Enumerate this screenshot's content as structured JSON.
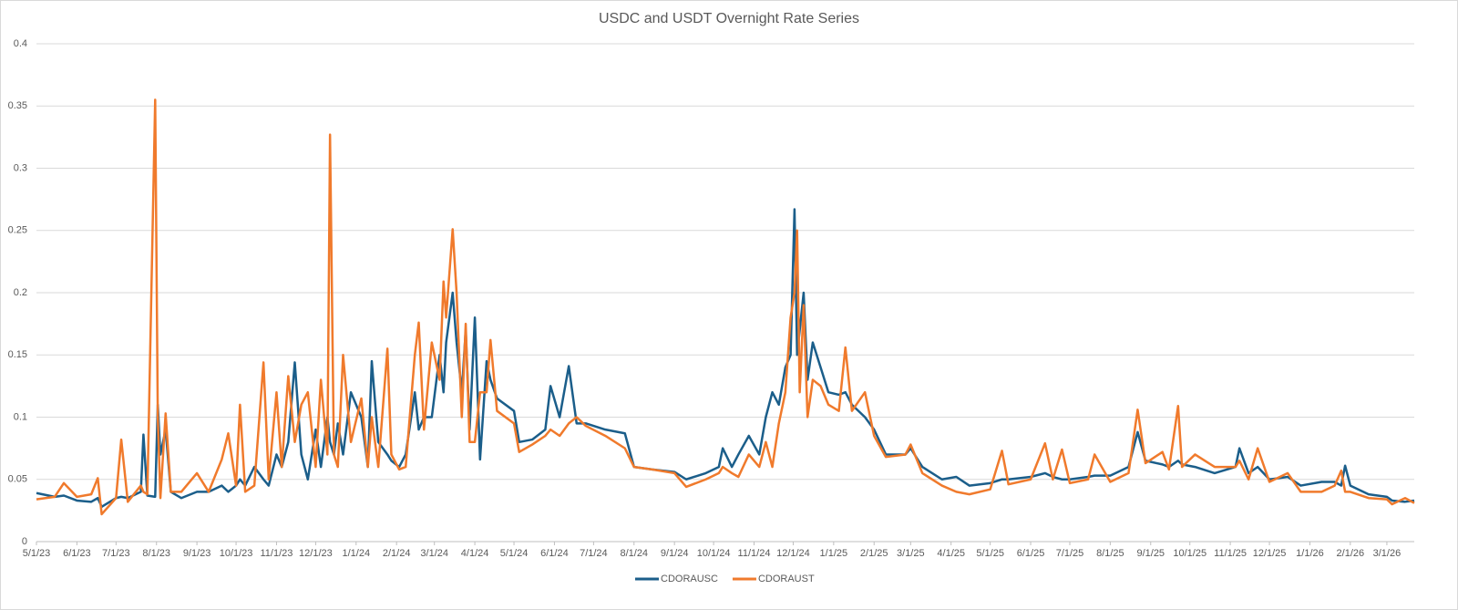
{
  "chart_data": {
    "type": "line",
    "title": "USDC and USDT Overnight Rate Series",
    "x": [
      "5/1/23",
      "5/15/23",
      "5/22/23",
      "6/1/23",
      "6/12/23",
      "6/17/23",
      "6/20/23",
      "7/1/23",
      "7/5/23",
      "7/10/23",
      "7/20/23",
      "7/22/23",
      "7/25/23",
      "7/31/23",
      "8/2/23",
      "8/4/23",
      "8/8/23",
      "8/12/23",
      "8/20/23",
      "9/1/23",
      "9/10/23",
      "9/20/23",
      "9/25/23",
      "10/1/23",
      "10/4/23",
      "10/8/23",
      "10/15/23",
      "10/22/23",
      "10/26/23",
      "11/1/23",
      "11/5/23",
      "11/10/23",
      "11/15/23",
      "11/20/23",
      "11/25/23",
      "12/1/23",
      "12/5/23",
      "12/10/23",
      "12/12/23",
      "12/15/23",
      "12/18/23",
      "12/22/23",
      "12/28/23",
      "1/5/24",
      "1/10/24",
      "1/13/24",
      "1/18/24",
      "1/25/24",
      "1/28/24",
      "2/3/24",
      "2/8/24",
      "2/15/24",
      "2/18/24",
      "2/22/24",
      "2/28/24",
      "3/5/24",
      "3/8/24",
      "3/10/24",
      "3/15/24",
      "3/18/24",
      "3/22/24",
      "3/25/24",
      "3/28/24",
      "4/1/24",
      "4/5/24",
      "4/10/24",
      "4/13/24",
      "4/18/24",
      "5/1/24",
      "5/5/24",
      "5/15/24",
      "5/25/24",
      "5/29/24",
      "6/5/24",
      "6/12/24",
      "6/18/24",
      "6/25/24",
      "7/10/24",
      "7/25/24",
      "8/1/24",
      "8/15/24",
      "9/1/24",
      "9/10/24",
      "9/25/24",
      "10/5/24",
      "10/8/24",
      "10/15/24",
      "10/20/24",
      "10/28/24",
      "11/5/24",
      "11/10/24",
      "11/15/24",
      "11/20/24",
      "11/25/24",
      "11/29/24",
      "12/2/24",
      "12/4/24",
      "12/6/24",
      "12/9/24",
      "12/12/24",
      "12/16/24",
      "12/22/24",
      "12/28/24",
      "1/5/25",
      "1/10/25",
      "1/15/25",
      "1/25/25",
      "2/1/25",
      "2/10/25",
      "2/25/25",
      "3/1/25",
      "3/10/25",
      "3/25/25",
      "4/5/25",
      "4/15/25",
      "5/1/25",
      "5/10/25",
      "5/15/25",
      "6/1/25",
      "6/12/25",
      "6/18/25",
      "6/25/25",
      "7/1/25",
      "7/15/25",
      "7/20/25",
      "8/1/25",
      "8/15/25",
      "8/22/25",
      "8/28/25",
      "9/10/25",
      "9/15/25",
      "9/22/25",
      "9/25/25",
      "10/5/25",
      "10/20/25",
      "11/5/25",
      "11/8/25",
      "11/15/25",
      "11/22/25",
      "12/1/25",
      "12/15/25",
      "12/25/25",
      "1/10/26",
      "1/20/26",
      "1/25/26",
      "1/28/26",
      "2/1/26",
      "2/15/26",
      "3/1/26",
      "3/5/26",
      "3/15/26",
      "3/22/26"
    ],
    "series": [
      {
        "name": "CDORAUSC",
        "color": "#1b5e8a",
        "values": [
          0.039,
          0.036,
          0.037,
          0.033,
          0.032,
          0.035,
          0.028,
          0.035,
          0.036,
          0.035,
          0.04,
          0.086,
          0.037,
          0.036,
          0.11,
          0.07,
          0.09,
          0.04,
          0.035,
          0.04,
          0.04,
          0.045,
          0.04,
          0.045,
          0.05,
          0.045,
          0.06,
          0.05,
          0.045,
          0.07,
          0.06,
          0.08,
          0.144,
          0.07,
          0.05,
          0.09,
          0.06,
          0.1,
          0.08,
          0.07,
          0.095,
          0.07,
          0.12,
          0.1,
          0.06,
          0.145,
          0.08,
          0.07,
          0.065,
          0.06,
          0.07,
          0.12,
          0.09,
          0.1,
          0.1,
          0.15,
          0.12,
          0.16,
          0.2,
          0.16,
          0.12,
          0.17,
          0.09,
          0.18,
          0.066,
          0.145,
          0.13,
          0.115,
          0.105,
          0.08,
          0.082,
          0.09,
          0.125,
          0.1,
          0.141,
          0.095,
          0.095,
          0.09,
          0.087,
          0.06,
          0.058,
          0.056,
          0.05,
          0.055,
          0.06,
          0.075,
          0.06,
          0.07,
          0.085,
          0.07,
          0.1,
          0.12,
          0.11,
          0.14,
          0.15,
          0.267,
          0.15,
          0.17,
          0.2,
          0.13,
          0.16,
          0.14,
          0.12,
          0.118,
          0.12,
          0.11,
          0.1,
          0.09,
          0.07,
          0.07,
          0.075,
          0.06,
          0.05,
          0.052,
          0.045,
          0.047,
          0.05,
          0.05,
          0.052,
          0.055,
          0.052,
          0.05,
          0.05,
          0.052,
          0.053,
          0.053,
          0.06,
          0.088,
          0.065,
          0.062,
          0.06,
          0.065,
          0.062,
          0.06,
          0.055,
          0.06,
          0.075,
          0.055,
          0.06,
          0.05,
          0.052,
          0.045,
          0.048,
          0.048,
          0.045,
          0.061,
          0.045,
          0.038,
          0.036,
          0.033,
          0.032,
          0.033
        ]
      },
      {
        "name": "CDORAUST",
        "color": "#f07a2c",
        "values": [
          0.034,
          0.036,
          0.047,
          0.036,
          0.038,
          0.051,
          0.022,
          0.035,
          0.082,
          0.032,
          0.045,
          0.04,
          0.038,
          0.355,
          0.1,
          0.035,
          0.103,
          0.04,
          0.04,
          0.055,
          0.04,
          0.066,
          0.087,
          0.045,
          0.11,
          0.04,
          0.045,
          0.144,
          0.05,
          0.12,
          0.06,
          0.133,
          0.08,
          0.11,
          0.12,
          0.06,
          0.13,
          0.07,
          0.327,
          0.07,
          0.06,
          0.15,
          0.08,
          0.115,
          0.06,
          0.1,
          0.06,
          0.155,
          0.07,
          0.058,
          0.06,
          0.15,
          0.176,
          0.09,
          0.16,
          0.13,
          0.209,
          0.18,
          0.251,
          0.2,
          0.1,
          0.175,
          0.08,
          0.08,
          0.12,
          0.12,
          0.162,
          0.105,
          0.095,
          0.072,
          0.078,
          0.085,
          0.09,
          0.085,
          0.095,
          0.1,
          0.093,
          0.085,
          0.075,
          0.06,
          0.058,
          0.055,
          0.044,
          0.05,
          0.055,
          0.06,
          0.055,
          0.052,
          0.07,
          0.06,
          0.08,
          0.06,
          0.095,
          0.12,
          0.18,
          0.2,
          0.25,
          0.12,
          0.19,
          0.1,
          0.13,
          0.125,
          0.11,
          0.105,
          0.156,
          0.105,
          0.12,
          0.085,
          0.068,
          0.07,
          0.078,
          0.055,
          0.045,
          0.04,
          0.038,
          0.042,
          0.073,
          0.046,
          0.05,
          0.079,
          0.05,
          0.074,
          0.047,
          0.05,
          0.07,
          0.048,
          0.055,
          0.106,
          0.063,
          0.072,
          0.058,
          0.109,
          0.06,
          0.07,
          0.06,
          0.06,
          0.065,
          0.05,
          0.075,
          0.048,
          0.055,
          0.04,
          0.04,
          0.045,
          0.057,
          0.04,
          0.04,
          0.035,
          0.034,
          0.03,
          0.035,
          0.031
        ]
      }
    ],
    "xlim": [
      "5/1/23",
      "3/22/26"
    ],
    "xticks": [
      "5/1/23",
      "6/1/23",
      "7/1/23",
      "8/1/23",
      "9/1/23",
      "10/1/23",
      "11/1/23",
      "12/1/23",
      "1/1/24",
      "2/1/24",
      "3/1/24",
      "4/1/24",
      "5/1/24",
      "6/1/24",
      "7/1/24",
      "8/1/24",
      "9/1/24",
      "10/1/24",
      "11/1/24",
      "12/1/24",
      "1/1/25",
      "2/1/25",
      "3/1/25",
      "4/1/25",
      "5/1/25",
      "6/1/25",
      "7/1/25",
      "8/1/25",
      "9/1/25",
      "10/1/25",
      "11/1/25",
      "12/1/25",
      "1/1/26",
      "2/1/26",
      "3/1/26"
    ],
    "ylim": [
      0,
      0.4
    ],
    "yticks": [
      0,
      0.05,
      0.1,
      0.15,
      0.2,
      0.25,
      0.3,
      0.35,
      0.4
    ],
    "grid": true,
    "legend": "bottom"
  }
}
